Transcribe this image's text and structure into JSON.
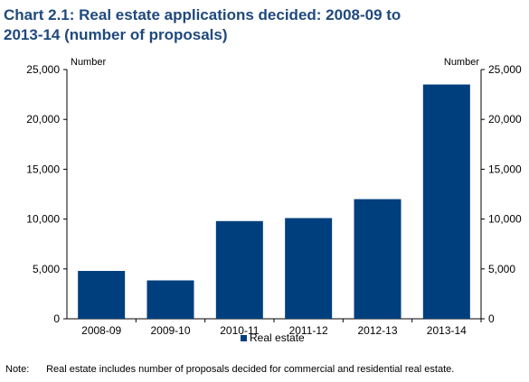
{
  "title_lines": [
    "Chart 2.1: Real estate applications decided: 2008-09 to",
    "2013-14 (number of proposals)"
  ],
  "chart_data": {
    "type": "bar",
    "title": "Chart 2.1: Real estate applications decided: 2008-09 to 2013-14 (number of proposals)",
    "categories": [
      "2008-09",
      "2009-10",
      "2010-11",
      "2011-12",
      "2012-13",
      "2013-14"
    ],
    "series": [
      {
        "name": "Real estate",
        "values": [
          4800,
          3850,
          9800,
          10100,
          12000,
          23500
        ],
        "color": "#003f7d"
      }
    ],
    "ylabel_left": "Number",
    "ylabel_right": "Number",
    "ylim": [
      0,
      25000
    ],
    "yticks": [
      0,
      5000,
      10000,
      15000,
      20000,
      25000
    ],
    "ytick_labels": [
      "0",
      "5,000",
      "10,000",
      "15,000",
      "20,000",
      "25,000"
    ],
    "grid": false,
    "legend_position": "bottom"
  },
  "note": {
    "label": "Note:",
    "text": "Real estate includes number of proposals decided for commercial and residential real estate."
  }
}
